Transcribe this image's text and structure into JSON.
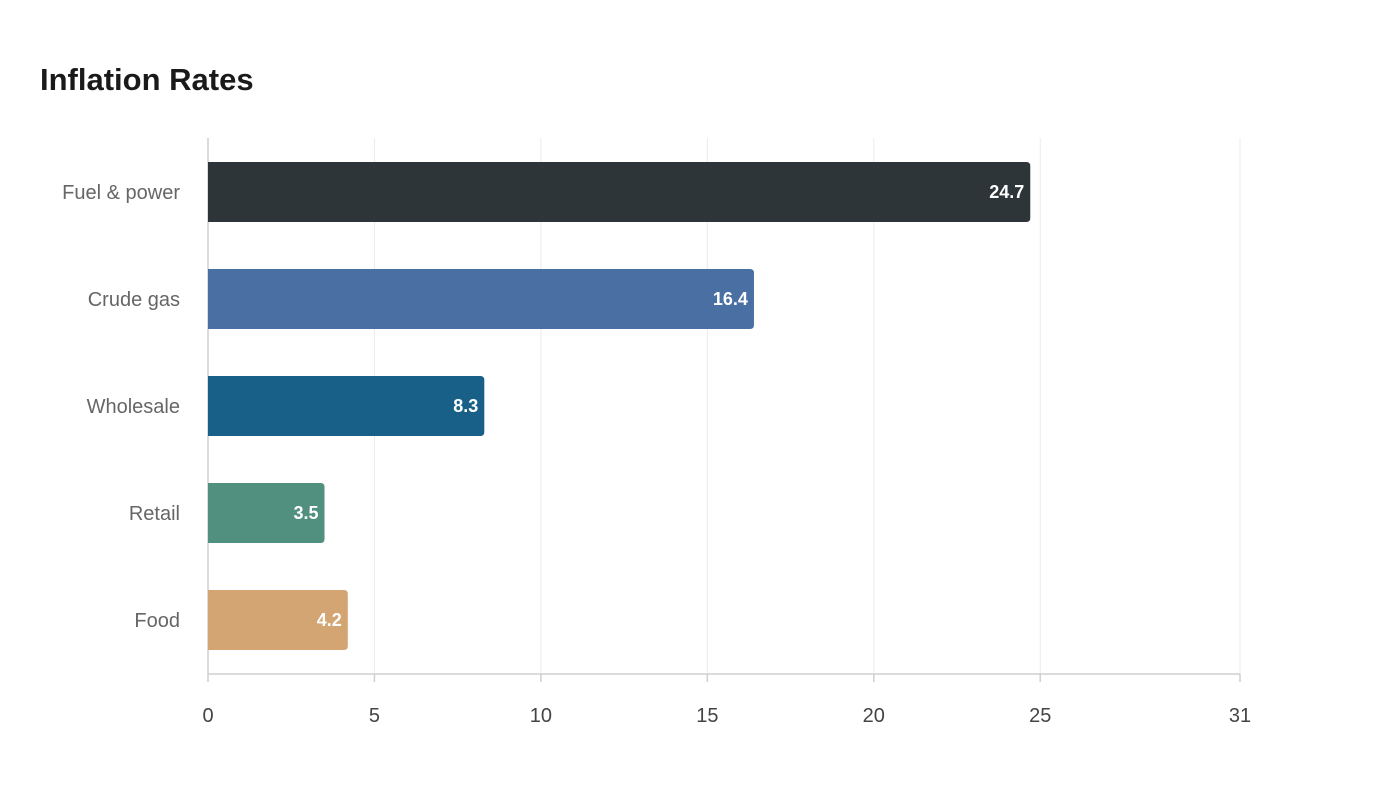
{
  "chart_data": {
    "type": "bar",
    "orientation": "horizontal",
    "title": "Inflation Rates",
    "xlabel": "",
    "ylabel": "",
    "categories": [
      "Fuel & power",
      "Crude gas",
      "Wholesale",
      "Retail",
      "Food"
    ],
    "values": [
      24.7,
      16.4,
      8.3,
      3.5,
      4.2
    ],
    "colors": [
      "#2e3538",
      "#4a6fa2",
      "#186087",
      "#518f7e",
      "#d3a573"
    ],
    "xlim": [
      0,
      31
    ],
    "xticks": [
      0,
      5,
      10,
      15,
      20,
      25,
      31
    ],
    "grid": true,
    "legend": "none"
  }
}
